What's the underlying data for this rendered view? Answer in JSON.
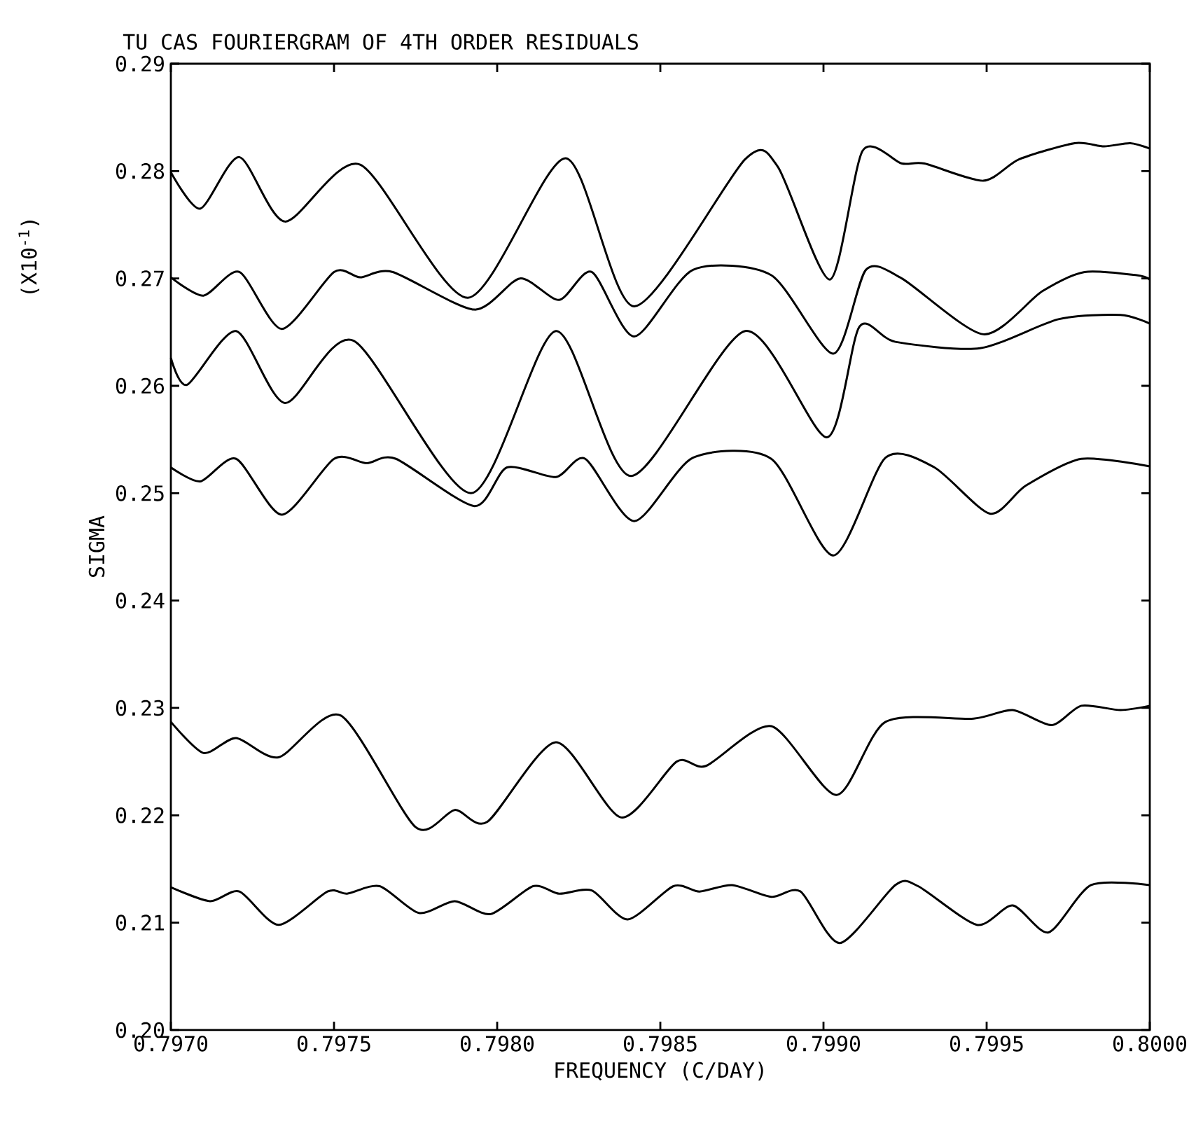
{
  "chart_data": {
    "type": "line",
    "title": "TU CAS FOURIERGRAM OF 4TH ORDER RESIDUALS",
    "xlabel": "FREQUENCY (C/DAY)",
    "ylabel": "SIGMA",
    "annotations": [
      "(X10$^{-1}$)"
    ],
    "xlim": [
      0.797,
      0.8
    ],
    "ylim": [
      0.2,
      0.29
    ],
    "xticks": [
      {
        "value": 0.797,
        "label": "0.7970"
      },
      {
        "value": 0.7975,
        "label": "0.7975"
      },
      {
        "value": 0.798,
        "label": "0.7980"
      },
      {
        "value": 0.7985,
        "label": "0.7985"
      },
      {
        "value": 0.799,
        "label": "0.7990"
      },
      {
        "value": 0.7995,
        "label": "0.7995"
      },
      {
        "value": 0.8,
        "label": "0.8000"
      }
    ],
    "yticks": [
      {
        "value": 0.2,
        "label": "0.20"
      },
      0.21,
      0.22,
      0.23,
      0.24,
      0.25,
      0.26,
      0.27,
      0.28,
      0.29
    ],
    "marker": "none",
    "line_style": "solid",
    "series": [
      {
        "color": "#000000",
        "x": [
          0.797,
          0.79709,
          0.79721,
          0.79735,
          0.79758,
          0.79791,
          0.79821,
          0.79842,
          0.79876,
          0.79886,
          0.79902,
          0.79912,
          0.79924,
          0.79931,
          0.79949,
          0.7996,
          0.79977,
          0.79986,
          0.79994,
          0.8
        ],
        "values": [
          0.2799,
          0.2765,
          0.2813,
          0.2753,
          0.2806,
          0.2682,
          0.2812,
          0.2674,
          0.2811,
          0.2804,
          0.2699,
          0.2819,
          0.2807,
          0.2807,
          0.2791,
          0.2811,
          0.2826,
          0.2823,
          0.2826,
          0.2821
        ]
      },
      {
        "color": "#000000",
        "x": [
          0.797,
          0.7971,
          0.79721,
          0.79734,
          0.7975,
          0.79758,
          0.79768,
          0.79793,
          0.79807,
          0.79819,
          0.79829,
          0.79842,
          0.7986,
          0.79884,
          0.79903,
          0.79913,
          0.79924,
          0.79949,
          0.79967,
          0.7998,
          0.79996,
          0.8
        ],
        "values": [
          0.2701,
          0.2684,
          0.2706,
          0.2653,
          0.2706,
          0.2701,
          0.2706,
          0.2671,
          0.27,
          0.268,
          0.2706,
          0.2646,
          0.2708,
          0.2703,
          0.263,
          0.2708,
          0.27,
          0.2648,
          0.2688,
          0.2706,
          0.2703,
          0.2699
        ]
      },
      {
        "color": "#000000",
        "x": [
          0.797,
          0.79705,
          0.7972,
          0.79735,
          0.79756,
          0.79792,
          0.79818,
          0.79841,
          0.79876,
          0.79901,
          0.79911,
          0.79922,
          0.79948,
          0.79972,
          0.79991,
          0.8
        ],
        "values": [
          0.2626,
          0.2601,
          0.2651,
          0.2584,
          0.2642,
          0.25,
          0.2651,
          0.2516,
          0.2651,
          0.2552,
          0.2655,
          0.2641,
          0.2635,
          0.2662,
          0.2666,
          0.2658
        ]
      },
      {
        "color": "#000000",
        "x": [
          0.797,
          0.79709,
          0.7972,
          0.79734,
          0.7975,
          0.7976,
          0.79769,
          0.79793,
          0.79803,
          0.79818,
          0.79827,
          0.79842,
          0.7986,
          0.79884,
          0.79903,
          0.79919,
          0.79934,
          0.79951,
          0.79962,
          0.79979,
          0.8
        ],
        "values": [
          0.2524,
          0.2511,
          0.2532,
          0.248,
          0.2532,
          0.2528,
          0.2532,
          0.2488,
          0.2524,
          0.2515,
          0.2532,
          0.2474,
          0.2533,
          0.2532,
          0.2442,
          0.2533,
          0.2524,
          0.2481,
          0.2507,
          0.2532,
          0.2525
        ]
      },
      {
        "color": "#000000",
        "x": [
          0.797,
          0.7971,
          0.7972,
          0.79733,
          0.79752,
          0.79775,
          0.79787,
          0.79797,
          0.79818,
          0.79838,
          0.79855,
          0.79864,
          0.79884,
          0.79904,
          0.79919,
          0.79946,
          0.79958,
          0.7997,
          0.79979,
          0.79991,
          0.8
        ],
        "values": [
          0.2287,
          0.2258,
          0.2272,
          0.2254,
          0.2293,
          0.2189,
          0.2205,
          0.2194,
          0.2268,
          0.2198,
          0.225,
          0.2246,
          0.2283,
          0.2219,
          0.2287,
          0.229,
          0.2298,
          0.2284,
          0.2302,
          0.2298,
          0.2302
        ]
      },
      {
        "color": "#000000",
        "x": [
          0.797,
          0.79712,
          0.79721,
          0.79733,
          0.79748,
          0.79754,
          0.79764,
          0.79776,
          0.79787,
          0.79798,
          0.79811,
          0.79819,
          0.79829,
          0.7984,
          0.79854,
          0.79862,
          0.79872,
          0.79884,
          0.79893,
          0.79905,
          0.79922,
          0.79929,
          0.79947,
          0.79958,
          0.79969,
          0.79982,
          0.8
        ],
        "values": [
          0.2133,
          0.212,
          0.2129,
          0.2098,
          0.2129,
          0.2127,
          0.2134,
          0.2109,
          0.212,
          0.2108,
          0.2134,
          0.2127,
          0.213,
          0.2103,
          0.2134,
          0.2129,
          0.2135,
          0.2124,
          0.2129,
          0.2081,
          0.2135,
          0.2134,
          0.2098,
          0.2116,
          0.2091,
          0.2135,
          0.2135
        ]
      }
    ]
  }
}
